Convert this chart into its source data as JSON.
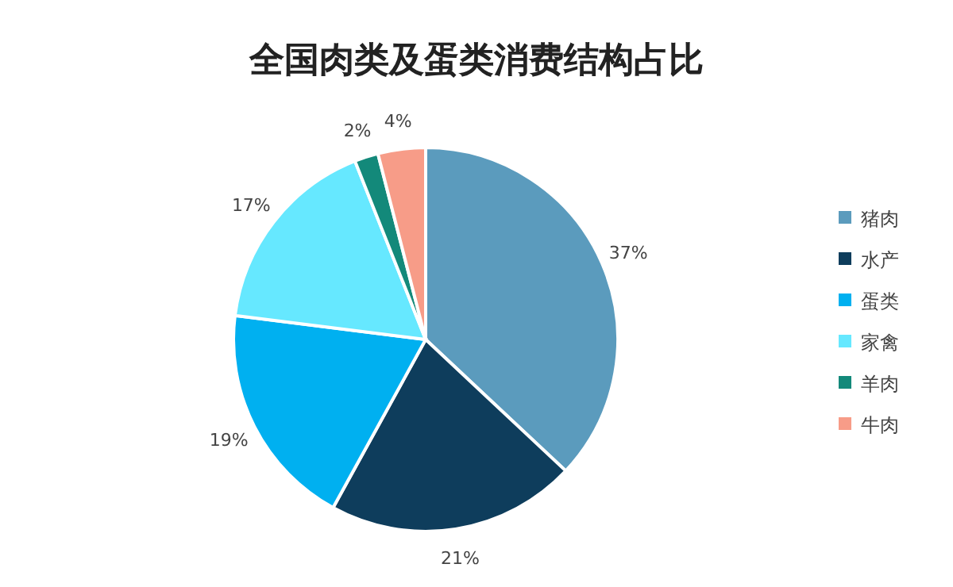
{
  "chart_data": {
    "type": "pie",
    "title": "全国肉类及蛋类消费结构占比",
    "categories": [
      "猪肉",
      "水产",
      "蛋类",
      "家禽",
      "羊肉",
      "牛肉"
    ],
    "values": [
      37,
      21,
      19,
      17,
      2,
      4
    ],
    "colors": [
      "#5b9bbd",
      "#0e3d5c",
      "#00b0f0",
      "#66e8ff",
      "#13897a",
      "#f79c88"
    ],
    "value_labels": [
      "37%",
      "21%",
      "19%",
      "17%",
      "2%",
      "4%"
    ],
    "legend": "right"
  }
}
